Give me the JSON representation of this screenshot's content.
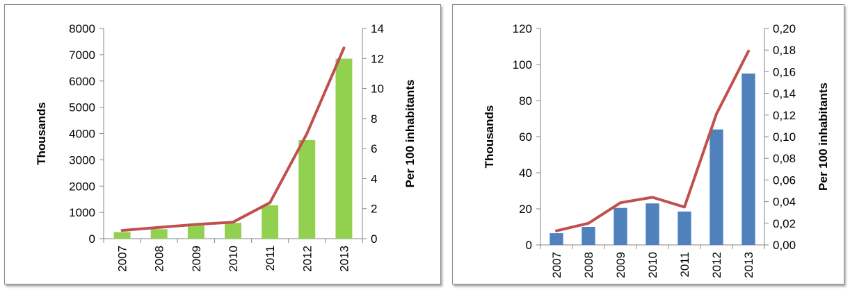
{
  "chart_data": [
    {
      "type": "bar",
      "categories": [
        "2007",
        "2008",
        "2009",
        "2010",
        "2011",
        "2012",
        "2013"
      ],
      "series": [
        {
          "kind": "bar",
          "axis": "left",
          "color": "#92d050",
          "values": [
            250,
            360,
            500,
            600,
            1270,
            3750,
            6850
          ]
        },
        {
          "kind": "line",
          "axis": "right",
          "color": "#c0504d",
          "values": [
            0.55,
            0.75,
            0.95,
            1.1,
            2.4,
            7.0,
            12.7
          ]
        }
      ],
      "ylabel": "Thousands",
      "ylabel_right": "Per 100 inhabitants",
      "ylim": [
        0,
        8000
      ],
      "ylim_right": [
        0,
        14
      ],
      "yticks": [
        "0",
        "1000",
        "2000",
        "3000",
        "4000",
        "5000",
        "6000",
        "7000",
        "8000"
      ],
      "yticks_right": [
        "0",
        "2",
        "4",
        "6",
        "8",
        "10",
        "12",
        "14"
      ],
      "grid": false
    },
    {
      "type": "bar",
      "categories": [
        "2007",
        "2008",
        "2009",
        "2010",
        "2011",
        "2012",
        "2013"
      ],
      "series": [
        {
          "kind": "bar",
          "axis": "left",
          "color": "#4f81bd",
          "values": [
            6.5,
            10,
            20.5,
            23,
            18.5,
            64,
            95
          ]
        },
        {
          "kind": "line",
          "axis": "right",
          "color": "#c0504d",
          "values": [
            0.013,
            0.02,
            0.039,
            0.044,
            0.035,
            0.121,
            0.179
          ]
        }
      ],
      "ylabel": "Thousands",
      "ylabel_right": "Per 100 inhabitants",
      "ylim": [
        0,
        120
      ],
      "ylim_right": [
        0,
        0.2
      ],
      "yticks": [
        "0",
        "20",
        "40",
        "60",
        "80",
        "100",
        "120"
      ],
      "yticks_right": [
        "0,00",
        "0,02",
        "0,04",
        "0,06",
        "0,08",
        "0,10",
        "0,12",
        "0,14",
        "0,16",
        "0,18",
        "0,20"
      ],
      "grid": false
    }
  ]
}
